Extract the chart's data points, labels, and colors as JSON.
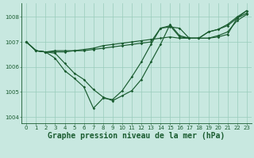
{
  "bg_color": "#c8e8e0",
  "grid_color": "#99ccbb",
  "line_color": "#1a5c30",
  "xlabel": "Graphe pression niveau de la mer (hPa)",
  "xlim": [
    -0.5,
    23.5
  ],
  "ylim": [
    1003.75,
    1008.55
  ],
  "yticks": [
    1004,
    1005,
    1006,
    1007,
    1008
  ],
  "xticks": [
    0,
    1,
    2,
    3,
    4,
    5,
    6,
    7,
    8,
    9,
    10,
    11,
    12,
    13,
    14,
    15,
    16,
    17,
    18,
    19,
    20,
    21,
    22,
    23
  ],
  "series": [
    [
      1007.0,
      1006.65,
      1006.6,
      1006.6,
      1006.6,
      1006.65,
      1006.7,
      1006.75,
      1006.85,
      1006.9,
      1006.95,
      1007.0,
      1007.05,
      1007.1,
      1007.15,
      1007.2,
      1007.15,
      1007.15,
      1007.15,
      1007.15,
      1007.2,
      1007.3,
      1007.95,
      1008.15
    ],
    [
      1007.0,
      1006.65,
      1006.6,
      1006.65,
      1006.65,
      1006.65,
      1006.65,
      1006.7,
      1006.75,
      1006.8,
      1006.85,
      1006.9,
      1006.95,
      1007.0,
      1007.55,
      1007.6,
      1007.55,
      1007.15,
      1007.15,
      1007.15,
      1007.25,
      1007.4,
      1007.85,
      1008.1
    ],
    [
      1007.0,
      1006.65,
      1006.6,
      1006.35,
      1005.85,
      1005.55,
      1005.2,
      1004.35,
      1004.75,
      1004.7,
      1005.05,
      1005.6,
      1006.2,
      1006.9,
      1007.55,
      1007.65,
      1007.2,
      1007.15,
      1007.15,
      1007.4,
      1007.5,
      1007.7,
      1008.0,
      1008.25
    ],
    [
      1007.0,
      1006.65,
      1006.6,
      1006.55,
      1006.15,
      1005.75,
      1005.5,
      1005.1,
      1004.8,
      1004.65,
      1004.85,
      1005.05,
      1005.5,
      1006.2,
      1006.9,
      1007.7,
      1007.25,
      1007.15,
      1007.15,
      1007.4,
      1007.5,
      1007.65,
      1007.95,
      1008.25
    ]
  ],
  "title_fontsize": 7.0,
  "tick_fontsize": 5.0,
  "marker_size": 1.8,
  "line_width": 0.85
}
